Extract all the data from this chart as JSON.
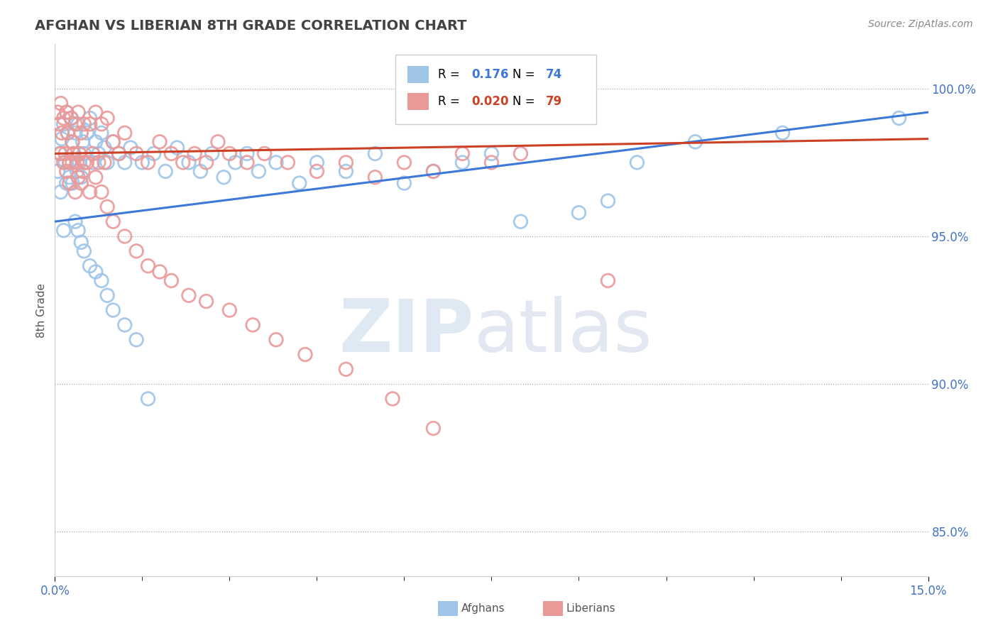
{
  "title": "AFGHAN VS LIBERIAN 8TH GRADE CORRELATION CHART",
  "source": "Source: ZipAtlas.com",
  "ylabel": "8th Grade",
  "y_ticks": [
    85.0,
    90.0,
    95.0,
    100.0
  ],
  "x_range": [
    0.0,
    15.0
  ],
  "y_range": [
    83.5,
    101.5
  ],
  "legend_blue_r": "0.176",
  "legend_blue_n": "74",
  "legend_pink_r": "0.020",
  "legend_pink_n": "79",
  "blue_color": "#9fc5e8",
  "pink_color": "#ea9999",
  "blue_line_color": "#3c78d8",
  "pink_line_color": "#cc4125",
  "title_color": "#434343",
  "axis_label_color": "#4472c4",
  "blue_line_y0": 95.5,
  "blue_line_y1": 99.2,
  "pink_line_y0": 97.8,
  "pink_line_y1": 98.3,
  "blue_scatter_x": [
    0.05,
    0.08,
    0.12,
    0.15,
    0.18,
    0.2,
    0.22,
    0.25,
    0.28,
    0.3,
    0.32,
    0.35,
    0.38,
    0.4,
    0.42,
    0.45,
    0.48,
    0.5,
    0.55,
    0.6,
    0.65,
    0.7,
    0.75,
    0.8,
    0.85,
    0.9,
    1.0,
    1.1,
    1.2,
    1.3,
    1.5,
    1.7,
    1.9,
    2.1,
    2.3,
    2.5,
    2.7,
    2.9,
    3.1,
    3.3,
    3.5,
    3.8,
    4.2,
    4.5,
    5.0,
    5.5,
    6.0,
    6.5,
    7.0,
    7.5,
    8.0,
    9.0,
    9.5,
    10.0,
    11.0,
    12.5,
    14.5,
    0.1,
    0.15,
    0.2,
    0.25,
    0.3,
    0.35,
    0.4,
    0.45,
    0.5,
    0.6,
    0.7,
    0.8,
    0.9,
    1.0,
    1.2,
    1.4,
    1.6
  ],
  "blue_scatter_y": [
    97.2,
    97.8,
    98.3,
    98.8,
    97.5,
    99.2,
    98.5,
    97.0,
    99.0,
    98.2,
    97.8,
    98.5,
    97.2,
    98.8,
    97.5,
    97.0,
    98.2,
    97.8,
    98.5,
    99.0,
    97.5,
    98.2,
    97.8,
    98.5,
    98.0,
    97.5,
    98.2,
    97.8,
    97.5,
    98.0,
    97.5,
    97.8,
    97.2,
    98.0,
    97.5,
    97.2,
    97.8,
    97.0,
    97.5,
    97.8,
    97.2,
    97.5,
    96.8,
    97.5,
    97.2,
    97.8,
    96.8,
    97.2,
    97.5,
    97.8,
    95.5,
    95.8,
    96.2,
    97.5,
    98.2,
    98.5,
    99.0,
    96.5,
    95.2,
    96.8,
    97.5,
    96.8,
    95.5,
    95.2,
    94.8,
    94.5,
    94.0,
    93.8,
    93.5,
    93.0,
    92.5,
    92.0,
    91.5,
    89.5
  ],
  "pink_scatter_x": [
    0.05,
    0.08,
    0.1,
    0.12,
    0.15,
    0.18,
    0.2,
    0.22,
    0.25,
    0.28,
    0.3,
    0.32,
    0.35,
    0.38,
    0.4,
    0.42,
    0.45,
    0.48,
    0.5,
    0.55,
    0.6,
    0.65,
    0.7,
    0.75,
    0.8,
    0.85,
    0.9,
    1.0,
    1.1,
    1.2,
    1.4,
    1.6,
    1.8,
    2.0,
    2.2,
    2.4,
    2.6,
    2.8,
    3.0,
    3.3,
    3.6,
    4.0,
    4.5,
    5.0,
    5.5,
    6.0,
    6.5,
    7.0,
    7.5,
    8.0,
    9.5,
    0.1,
    0.15,
    0.2,
    0.25,
    0.3,
    0.35,
    0.4,
    0.45,
    0.5,
    0.6,
    0.7,
    0.8,
    0.9,
    1.0,
    1.2,
    1.4,
    1.6,
    1.8,
    2.0,
    2.3,
    2.6,
    3.0,
    3.4,
    3.8,
    4.3,
    5.0,
    5.8,
    6.5
  ],
  "pink_scatter_y": [
    99.2,
    98.8,
    99.5,
    98.5,
    99.0,
    97.8,
    99.2,
    98.5,
    97.5,
    99.0,
    98.2,
    97.8,
    98.8,
    97.5,
    99.2,
    97.8,
    98.5,
    97.2,
    98.8,
    97.5,
    98.8,
    97.8,
    99.2,
    97.5,
    98.8,
    97.5,
    99.0,
    98.2,
    97.8,
    98.5,
    97.8,
    97.5,
    98.2,
    97.8,
    97.5,
    97.8,
    97.5,
    98.2,
    97.8,
    97.5,
    97.8,
    97.5,
    97.2,
    97.5,
    97.0,
    97.5,
    97.2,
    97.8,
    97.5,
    97.8,
    93.5,
    97.8,
    97.5,
    97.2,
    96.8,
    97.5,
    96.5,
    97.0,
    96.8,
    97.5,
    96.5,
    97.0,
    96.5,
    96.0,
    95.5,
    95.0,
    94.5,
    94.0,
    93.8,
    93.5,
    93.0,
    92.8,
    92.5,
    92.0,
    91.5,
    91.0,
    90.5,
    89.5,
    88.5
  ]
}
